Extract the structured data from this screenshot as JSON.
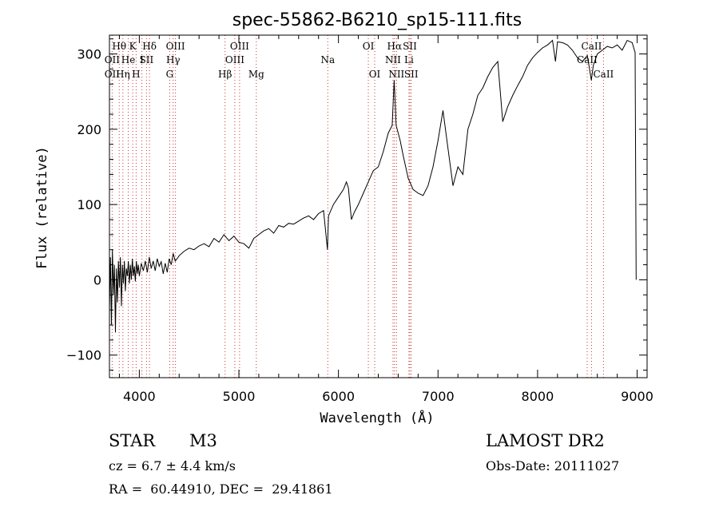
{
  "chart_data": {
    "type": "line",
    "title": "spec-55862-B6210_sp15-111.fits",
    "xlabel": "Wavelength (Å)",
    "ylabel": "Flux (relative)",
    "xlim": [
      3700,
      9100
    ],
    "ylim": [
      -130,
      325
    ],
    "xticks": [
      4000,
      5000,
      6000,
      7000,
      8000,
      9000
    ],
    "yticks": [
      -100,
      0,
      100,
      200,
      300
    ],
    "grid": false,
    "series": [
      {
        "points": [
          [
            3700,
            -40
          ],
          [
            3710,
            30
          ],
          [
            3720,
            -60
          ],
          [
            3730,
            40
          ],
          [
            3740,
            -20
          ],
          [
            3750,
            20
          ],
          [
            3760,
            -70
          ],
          [
            3770,
            15
          ],
          [
            3780,
            -30
          ],
          [
            3790,
            25
          ],
          [
            3800,
            -10
          ],
          [
            3810,
            30
          ],
          [
            3820,
            -35
          ],
          [
            3830,
            20
          ],
          [
            3840,
            -5
          ],
          [
            3850,
            25
          ],
          [
            3860,
            -15
          ],
          [
            3870,
            15
          ],
          [
            3880,
            5
          ],
          [
            3890,
            25
          ],
          [
            3900,
            -5
          ],
          [
            3910,
            20
          ],
          [
            3920,
            0
          ],
          [
            3930,
            28
          ],
          [
            3940,
            5
          ],
          [
            3950,
            18
          ],
          [
            3960,
            -2
          ],
          [
            3970,
            25
          ],
          [
            3980,
            8
          ],
          [
            3990,
            20
          ],
          [
            4000,
            5
          ],
          [
            4020,
            22
          ],
          [
            4040,
            12
          ],
          [
            4060,
            25
          ],
          [
            4080,
            10
          ],
          [
            4100,
            30
          ],
          [
            4120,
            15
          ],
          [
            4140,
            25
          ],
          [
            4160,
            12
          ],
          [
            4180,
            28
          ],
          [
            4200,
            18
          ],
          [
            4220,
            24
          ],
          [
            4240,
            8
          ],
          [
            4260,
            22
          ],
          [
            4280,
            10
          ],
          [
            4300,
            28
          ],
          [
            4320,
            20
          ],
          [
            4340,
            35
          ],
          [
            4360,
            25
          ],
          [
            4380,
            28
          ],
          [
            4400,
            32
          ],
          [
            4450,
            38
          ],
          [
            4500,
            42
          ],
          [
            4550,
            40
          ],
          [
            4600,
            45
          ],
          [
            4650,
            48
          ],
          [
            4700,
            44
          ],
          [
            4750,
            55
          ],
          [
            4800,
            50
          ],
          [
            4850,
            60
          ],
          [
            4900,
            52
          ],
          [
            4950,
            58
          ],
          [
            5000,
            50
          ],
          [
            5050,
            48
          ],
          [
            5100,
            42
          ],
          [
            5150,
            55
          ],
          [
            5200,
            60
          ],
          [
            5250,
            65
          ],
          [
            5300,
            68
          ],
          [
            5350,
            62
          ],
          [
            5400,
            72
          ],
          [
            5450,
            70
          ],
          [
            5500,
            75
          ],
          [
            5550,
            74
          ],
          [
            5600,
            78
          ],
          [
            5650,
            82
          ],
          [
            5700,
            85
          ],
          [
            5750,
            80
          ],
          [
            5800,
            88
          ],
          [
            5850,
            92
          ],
          [
            5890,
            40
          ],
          [
            5900,
            85
          ],
          [
            5950,
            100
          ],
          [
            6000,
            110
          ],
          [
            6050,
            120
          ],
          [
            6080,
            130
          ],
          [
            6100,
            122
          ],
          [
            6130,
            80
          ],
          [
            6160,
            90
          ],
          [
            6200,
            100
          ],
          [
            6250,
            115
          ],
          [
            6300,
            130
          ],
          [
            6350,
            145
          ],
          [
            6400,
            150
          ],
          [
            6450,
            170
          ],
          [
            6500,
            195
          ],
          [
            6540,
            205
          ],
          [
            6560,
            265
          ],
          [
            6580,
            205
          ],
          [
            6620,
            185
          ],
          [
            6650,
            165
          ],
          [
            6700,
            135
          ],
          [
            6750,
            120
          ],
          [
            6800,
            115
          ],
          [
            6850,
            112
          ],
          [
            6900,
            125
          ],
          [
            6950,
            150
          ],
          [
            7000,
            185
          ],
          [
            7050,
            225
          ],
          [
            7080,
            195
          ],
          [
            7100,
            175
          ],
          [
            7150,
            125
          ],
          [
            7200,
            150
          ],
          [
            7250,
            140
          ],
          [
            7300,
            200
          ],
          [
            7350,
            220
          ],
          [
            7400,
            245
          ],
          [
            7450,
            255
          ],
          [
            7500,
            270
          ],
          [
            7550,
            282
          ],
          [
            7600,
            290
          ],
          [
            7650,
            210
          ],
          [
            7700,
            230
          ],
          [
            7750,
            245
          ],
          [
            7800,
            258
          ],
          [
            7850,
            270
          ],
          [
            7900,
            285
          ],
          [
            7950,
            295
          ],
          [
            8000,
            302
          ],
          [
            8050,
            308
          ],
          [
            8100,
            312
          ],
          [
            8150,
            318
          ],
          [
            8180,
            290
          ],
          [
            8200,
            316
          ],
          [
            8250,
            315
          ],
          [
            8300,
            312
          ],
          [
            8350,
            305
          ],
          [
            8400,
            295
          ],
          [
            8450,
            290
          ],
          [
            8500,
            298
          ],
          [
            8540,
            265
          ],
          [
            8560,
            285
          ],
          [
            8600,
            300
          ],
          [
            8650,
            305
          ],
          [
            8700,
            310
          ],
          [
            8750,
            308
          ],
          [
            8800,
            312
          ],
          [
            8850,
            305
          ],
          [
            8900,
            318
          ],
          [
            8950,
            315
          ],
          [
            8980,
            302
          ],
          [
            8990,
            0
          ]
        ]
      }
    ],
    "line_markers": [
      {
        "label": "Hθ",
        "wavelength": 3798,
        "row": 1
      },
      {
        "label": "K",
        "wavelength": 3934,
        "row": 1
      },
      {
        "label": "Hδ",
        "wavelength": 4102,
        "row": 1
      },
      {
        "label": "OIII",
        "wavelength": 4363,
        "row": 1
      },
      {
        "label": "OIII",
        "wavelength": 5007,
        "row": 1
      },
      {
        "label": "OI",
        "wavelength": 6300,
        "row": 1
      },
      {
        "label": "Hα",
        "wavelength": 6563,
        "row": 1
      },
      {
        "label": "SII",
        "wavelength": 6717,
        "row": 1
      },
      {
        "label": "CaII",
        "wavelength": 8542,
        "row": 1
      },
      {
        "label": "OII",
        "wavelength": 3727,
        "row": 2
      },
      {
        "label": "He",
        "wavelength": 3889,
        "row": 2
      },
      {
        "label": "I",
        "wavelength": 4026,
        "row": 2
      },
      {
        "label": "SII",
        "wavelength": 4072,
        "row": 2
      },
      {
        "label": "Hγ",
        "wavelength": 4340,
        "row": 2
      },
      {
        "label": "OIII",
        "wavelength": 4959,
        "row": 2
      },
      {
        "label": "Na",
        "wavelength": 5893,
        "row": 2
      },
      {
        "label": "NII",
        "wavelength": 6548,
        "row": 2
      },
      {
        "label": "Li",
        "wavelength": 6708,
        "row": 2
      },
      {
        "label": "CaII",
        "wavelength": 8498,
        "row": 2
      },
      {
        "label": "OII",
        "wavelength": 3727,
        "row": 3
      },
      {
        "label": "Hη",
        "wavelength": 3835,
        "row": 3
      },
      {
        "label": "H",
        "wavelength": 3968,
        "row": 3
      },
      {
        "label": "G",
        "wavelength": 4305,
        "row": 3
      },
      {
        "label": "Hβ",
        "wavelength": 4861,
        "row": 3
      },
      {
        "label": "Mg",
        "wavelength": 5175,
        "row": 3
      },
      {
        "label": "OI",
        "wavelength": 6364,
        "row": 3
      },
      {
        "label": "NII",
        "wavelength": 6583,
        "row": 3
      },
      {
        "label": "SII",
        "wavelength": 6731,
        "row": 3
      },
      {
        "label": "CaII",
        "wavelength": 8662,
        "row": 3
      }
    ]
  },
  "info": {
    "object_class": "STAR",
    "subclass": "M3",
    "survey": "LAMOST DR2",
    "redshift": "cz = 6.7 ± 4.4 km/s",
    "obs_date": "Obs-Date: 20111027",
    "coords": "RA =  60.44910, DEC =  29.41861"
  },
  "colors": {
    "marker_line": "#cc3333",
    "spectrum": "#000000"
  }
}
